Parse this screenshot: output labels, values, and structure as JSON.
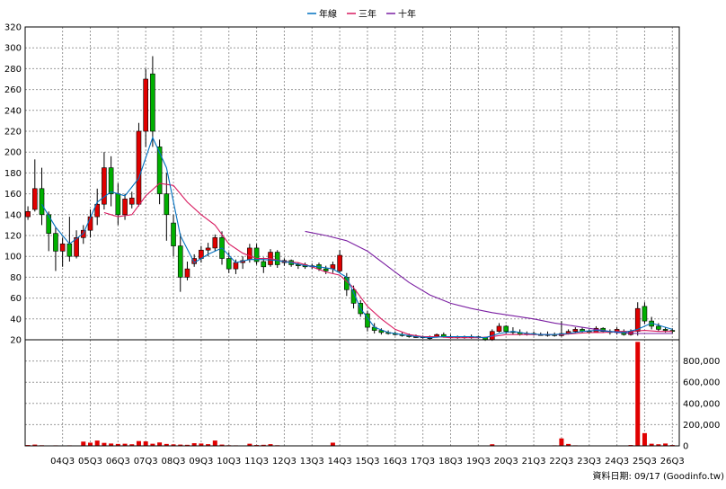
{
  "legend": {
    "items": [
      {
        "label": "年線",
        "color": "#0070c0"
      },
      {
        "label": "三年",
        "color": "#d81b60"
      },
      {
        "label": "十年",
        "color": "#7b1fa2"
      }
    ]
  },
  "footer": "資料日期: 09/17  (Goodinfo.tw)",
  "chart_data": {
    "type": "candlestick",
    "grid": true,
    "x_tick_labels": [
      "04Q3",
      "05Q3",
      "06Q3",
      "07Q3",
      "08Q3",
      "09Q3",
      "10Q3",
      "11Q3",
      "12Q3",
      "13Q3",
      "14Q3",
      "15Q3",
      "16Q3",
      "17Q3",
      "18Q3",
      "19Q3",
      "20Q3",
      "21Q3",
      "22Q3",
      "23Q3",
      "24Q3",
      "25Q3",
      "26Q3"
    ],
    "x_range": [
      2003.15,
      2026.75
    ],
    "price_axis": {
      "ylim": [
        20,
        320
      ],
      "ticks": [
        20,
        40,
        60,
        80,
        100,
        120,
        140,
        160,
        180,
        200,
        220,
        240,
        260,
        280,
        300,
        320
      ]
    },
    "volume_axis": {
      "ylim": [
        0,
        1000000
      ],
      "ticks": [
        0,
        200000,
        400000,
        600000,
        800000
      ],
      "tick_labels": [
        "0",
        "200,000",
        "400,000",
        "600,000",
        "800,000"
      ]
    },
    "colors": {
      "up": "#e00000",
      "down": "#00b000",
      "flat": "#000000",
      "volume": "#e00000"
    },
    "candles": [
      [
        2003.25,
        138,
        148,
        135,
        143
      ],
      [
        2003.5,
        145,
        193,
        143,
        165
      ],
      [
        2003.75,
        165,
        185,
        130,
        140
      ],
      [
        2004.0,
        140,
        143,
        105,
        122
      ],
      [
        2004.25,
        122,
        128,
        86,
        105
      ],
      [
        2004.5,
        105,
        118,
        90,
        112
      ],
      [
        2004.75,
        112,
        138,
        95,
        100
      ],
      [
        2005.0,
        100,
        125,
        98,
        118
      ],
      [
        2005.25,
        118,
        130,
        112,
        125
      ],
      [
        2005.5,
        125,
        145,
        118,
        138
      ],
      [
        2005.75,
        138,
        165,
        130,
        150
      ],
      [
        2006.0,
        150,
        200,
        145,
        185
      ],
      [
        2006.25,
        185,
        196,
        148,
        160
      ],
      [
        2006.5,
        160,
        170,
        130,
        140
      ],
      [
        2006.75,
        140,
        160,
        135,
        155
      ],
      [
        2007.0,
        150,
        162,
        146,
        156
      ],
      [
        2007.25,
        150,
        228,
        148,
        220
      ],
      [
        2007.5,
        220,
        280,
        205,
        270
      ],
      [
        2007.75,
        275,
        292,
        205,
        220
      ],
      [
        2008.0,
        205,
        212,
        150,
        160
      ],
      [
        2008.25,
        160,
        180,
        115,
        140
      ],
      [
        2008.5,
        132,
        140,
        100,
        110
      ],
      [
        2008.75,
        110,
        122,
        66,
        80
      ],
      [
        2009.0,
        80,
        95,
        77,
        88
      ],
      [
        2009.25,
        93,
        102,
        90,
        98
      ],
      [
        2009.5,
        98,
        110,
        94,
        106
      ],
      [
        2009.75,
        106,
        113,
        100,
        108
      ],
      [
        2010.0,
        108,
        121,
        105,
        118
      ],
      [
        2010.25,
        118,
        124,
        92,
        98
      ],
      [
        2010.5,
        98,
        104,
        84,
        88
      ],
      [
        2010.75,
        88,
        97,
        83,
        94
      ],
      [
        2011.0,
        94,
        100,
        88,
        96
      ],
      [
        2011.25,
        97,
        112,
        94,
        108
      ],
      [
        2011.5,
        108,
        112,
        92,
        95
      ],
      [
        2011.75,
        95,
        99,
        84,
        90
      ],
      [
        2012.0,
        92,
        107,
        90,
        104
      ],
      [
        2012.25,
        104,
        106,
        89,
        92
      ],
      [
        2012.5,
        94,
        98,
        91,
        96
      ],
      [
        2012.75,
        96,
        97,
        90,
        92
      ],
      [
        2013.0,
        92,
        94,
        88,
        91
      ],
      [
        2013.25,
        92,
        94,
        88,
        90
      ],
      [
        2013.5,
        90,
        93,
        88,
        91
      ],
      [
        2013.75,
        92,
        94,
        86,
        88
      ],
      [
        2014.0,
        88,
        91,
        83,
        86
      ],
      [
        2014.25,
        88,
        95,
        84,
        92
      ],
      [
        2014.5,
        86,
        106,
        84,
        101
      ],
      [
        2014.75,
        80,
        84,
        62,
        68
      ],
      [
        2015.0,
        68,
        72,
        50,
        55
      ],
      [
        2015.25,
        55,
        58,
        42,
        45
      ],
      [
        2015.5,
        45,
        48,
        28,
        32
      ],
      [
        2015.75,
        32,
        36,
        26,
        29
      ],
      [
        2016.0,
        29,
        31,
        25,
        27
      ],
      [
        2016.25,
        27,
        29,
        25,
        26
      ],
      [
        2016.5,
        26,
        28,
        24,
        25
      ],
      [
        2016.75,
        25,
        27,
        23,
        24
      ],
      [
        2017.0,
        24,
        26,
        22,
        23
      ],
      [
        2017.25,
        23,
        25,
        22,
        23
      ],
      [
        2017.5,
        23,
        24,
        21,
        22
      ],
      [
        2017.75,
        22,
        24,
        20,
        22
      ],
      [
        2018.0,
        23,
        26,
        22,
        25
      ],
      [
        2018.25,
        25,
        27,
        22,
        23
      ],
      [
        2018.5,
        23,
        25,
        21,
        23
      ],
      [
        2018.75,
        23,
        24,
        21,
        22
      ],
      [
        2019.0,
        22,
        24,
        21,
        23
      ],
      [
        2019.25,
        23,
        25,
        21,
        23
      ],
      [
        2019.5,
        23,
        24,
        21,
        22
      ],
      [
        2019.75,
        22,
        23,
        19,
        20
      ],
      [
        2020.0,
        20,
        30,
        19,
        28
      ],
      [
        2020.25,
        28,
        36,
        27,
        33
      ],
      [
        2020.5,
        33,
        34,
        26,
        28
      ],
      [
        2020.75,
        28,
        32,
        25,
        27
      ],
      [
        2021.0,
        27,
        30,
        24,
        25
      ],
      [
        2021.25,
        25,
        28,
        24,
        26
      ],
      [
        2021.5,
        26,
        28,
        24,
        25
      ],
      [
        2021.75,
        25,
        27,
        24,
        25
      ],
      [
        2022.0,
        25,
        28,
        23,
        25
      ],
      [
        2022.25,
        25,
        27,
        23,
        24
      ],
      [
        2022.5,
        24,
        38,
        23,
        26
      ],
      [
        2022.75,
        26,
        30,
        25,
        28
      ],
      [
        2023.0,
        28,
        32,
        26,
        30
      ],
      [
        2023.25,
        30,
        32,
        27,
        28
      ],
      [
        2023.5,
        28,
        30,
        26,
        27
      ],
      [
        2023.75,
        27,
        33,
        27,
        31
      ],
      [
        2024.0,
        31,
        32,
        27,
        28
      ],
      [
        2024.25,
        28,
        30,
        25,
        27
      ],
      [
        2024.5,
        27,
        32,
        25,
        30
      ],
      [
        2024.75,
        28,
        30,
        24,
        25
      ],
      [
        2025.0,
        25,
        30,
        24,
        28
      ],
      [
        2025.25,
        28,
        56,
        24,
        50
      ],
      [
        2025.5,
        52,
        56,
        35,
        38
      ],
      [
        2025.75,
        38,
        42,
        30,
        33
      ],
      [
        2026.0,
        33,
        36,
        28,
        30
      ],
      [
        2026.25,
        30,
        32,
        27,
        29
      ],
      [
        2026.5,
        29,
        31,
        26,
        28
      ]
    ],
    "ma_annual": [
      [
        2003.75,
        150
      ],
      [
        2004.25,
        128
      ],
      [
        2004.75,
        112
      ],
      [
        2005.25,
        122
      ],
      [
        2005.75,
        152
      ],
      [
        2006.25,
        162
      ],
      [
        2006.75,
        158
      ],
      [
        2007.25,
        175
      ],
      [
        2007.75,
        214
      ],
      [
        2008.25,
        185
      ],
      [
        2008.75,
        120
      ],
      [
        2009.25,
        94
      ],
      [
        2009.75,
        102
      ],
      [
        2010.25,
        108
      ],
      [
        2010.75,
        94
      ],
      [
        2011.25,
        97
      ],
      [
        2011.75,
        97
      ],
      [
        2012.25,
        96
      ],
      [
        2012.75,
        94
      ],
      [
        2013.25,
        91
      ],
      [
        2013.75,
        90
      ],
      [
        2014.25,
        88
      ],
      [
        2014.75,
        80
      ],
      [
        2015.25,
        50
      ],
      [
        2015.75,
        32
      ],
      [
        2016.25,
        27
      ],
      [
        2016.75,
        25
      ],
      [
        2017.25,
        23
      ],
      [
        2017.75,
        22
      ],
      [
        2018.25,
        23
      ],
      [
        2018.75,
        23
      ],
      [
        2019.25,
        23
      ],
      [
        2019.75,
        22
      ],
      [
        2020.25,
        26
      ],
      [
        2020.75,
        28
      ],
      [
        2021.25,
        26
      ],
      [
        2021.75,
        25
      ],
      [
        2022.25,
        25
      ],
      [
        2022.75,
        26
      ],
      [
        2023.25,
        28
      ],
      [
        2023.75,
        29
      ],
      [
        2024.25,
        28
      ],
      [
        2024.75,
        27
      ],
      [
        2025.25,
        30
      ],
      [
        2025.75,
        36
      ],
      [
        2026.25,
        32
      ],
      [
        2026.5,
        30
      ]
    ],
    "ma_3yr": [
      [
        2006.0,
        142
      ],
      [
        2006.5,
        138
      ],
      [
        2007.0,
        140
      ],
      [
        2007.5,
        158
      ],
      [
        2008.0,
        170
      ],
      [
        2008.5,
        168
      ],
      [
        2009.0,
        152
      ],
      [
        2009.5,
        140
      ],
      [
        2010.0,
        130
      ],
      [
        2010.5,
        112
      ],
      [
        2011.0,
        103
      ],
      [
        2011.5,
        98
      ],
      [
        2012.0,
        98
      ],
      [
        2012.5,
        95
      ],
      [
        2013.0,
        94
      ],
      [
        2013.5,
        90
      ],
      [
        2014.0,
        85
      ],
      [
        2014.5,
        82
      ],
      [
        2015.0,
        70
      ],
      [
        2015.5,
        52
      ],
      [
        2016.0,
        40
      ],
      [
        2016.5,
        30
      ],
      [
        2017.0,
        25
      ],
      [
        2017.5,
        23
      ],
      [
        2018.0,
        23
      ],
      [
        2018.5,
        22
      ],
      [
        2019.0,
        22
      ],
      [
        2019.5,
        22
      ],
      [
        2020.0,
        23
      ],
      [
        2020.5,
        25
      ],
      [
        2021.0,
        25
      ],
      [
        2021.5,
        25
      ],
      [
        2022.0,
        25
      ],
      [
        2022.5,
        25
      ],
      [
        2023.0,
        26
      ],
      [
        2023.5,
        27
      ],
      [
        2024.0,
        27
      ],
      [
        2024.5,
        28
      ],
      [
        2025.0,
        28
      ],
      [
        2025.5,
        29
      ],
      [
        2026.0,
        28
      ],
      [
        2026.5,
        28
      ]
    ],
    "ma_10yr": [
      [
        2013.25,
        124
      ],
      [
        2014.0,
        120
      ],
      [
        2014.75,
        115
      ],
      [
        2015.5,
        105
      ],
      [
        2016.25,
        90
      ],
      [
        2017.0,
        75
      ],
      [
        2017.75,
        63
      ],
      [
        2018.5,
        55
      ],
      [
        2019.25,
        50
      ],
      [
        2020.0,
        46
      ],
      [
        2020.75,
        43
      ],
      [
        2021.5,
        40
      ],
      [
        2022.25,
        36
      ],
      [
        2023.0,
        33
      ],
      [
        2023.75,
        30
      ],
      [
        2024.5,
        27
      ],
      [
        2025.25,
        26
      ],
      [
        2026.5,
        26
      ]
    ],
    "volume": [
      [
        2003.25,
        8000
      ],
      [
        2003.5,
        12000
      ],
      [
        2003.75,
        6000
      ],
      [
        2004.0,
        4000
      ],
      [
        2004.25,
        5000
      ],
      [
        2004.5,
        4000
      ],
      [
        2004.75,
        5000
      ],
      [
        2005.0,
        4000
      ],
      [
        2005.25,
        40000
      ],
      [
        2005.5,
        30000
      ],
      [
        2005.75,
        50000
      ],
      [
        2006.0,
        28000
      ],
      [
        2006.25,
        22000
      ],
      [
        2006.5,
        18000
      ],
      [
        2006.75,
        20000
      ],
      [
        2007.0,
        15000
      ],
      [
        2007.25,
        45000
      ],
      [
        2007.5,
        42000
      ],
      [
        2007.75,
        20000
      ],
      [
        2008.0,
        32000
      ],
      [
        2008.25,
        18000
      ],
      [
        2008.5,
        14000
      ],
      [
        2008.75,
        12000
      ],
      [
        2009.0,
        10000
      ],
      [
        2009.25,
        25000
      ],
      [
        2009.5,
        22000
      ],
      [
        2009.75,
        16000
      ],
      [
        2010.0,
        50000
      ],
      [
        2010.25,
        12000
      ],
      [
        2010.5,
        6000
      ],
      [
        2010.75,
        5000
      ],
      [
        2011.0,
        4000
      ],
      [
        2011.25,
        20000
      ],
      [
        2011.5,
        8000
      ],
      [
        2011.75,
        10000
      ],
      [
        2012.0,
        16000
      ],
      [
        2012.25,
        6000
      ],
      [
        2012.5,
        3000
      ],
      [
        2012.75,
        3000
      ],
      [
        2013.0,
        2000
      ],
      [
        2013.25,
        2000
      ],
      [
        2013.5,
        2000
      ],
      [
        2013.75,
        2000
      ],
      [
        2014.0,
        2000
      ],
      [
        2014.25,
        30000
      ],
      [
        2014.5,
        4000
      ],
      [
        2014.75,
        3000
      ],
      [
        2015.0,
        3000
      ],
      [
        2015.25,
        2000
      ],
      [
        2015.5,
        2000
      ],
      [
        2015.75,
        2000
      ],
      [
        2016.0,
        2000
      ],
      [
        2016.25,
        2000
      ],
      [
        2016.5,
        2000
      ],
      [
        2016.75,
        2000
      ],
      [
        2017.0,
        2000
      ],
      [
        2017.25,
        2000
      ],
      [
        2017.5,
        2000
      ],
      [
        2017.75,
        2000
      ],
      [
        2018.0,
        2000
      ],
      [
        2018.25,
        2000
      ],
      [
        2018.5,
        2000
      ],
      [
        2018.75,
        2000
      ],
      [
        2019.0,
        2000
      ],
      [
        2019.25,
        2000
      ],
      [
        2019.5,
        2000
      ],
      [
        2019.75,
        2000
      ],
      [
        2020.0,
        15000
      ],
      [
        2020.25,
        4000
      ],
      [
        2020.5,
        2000
      ],
      [
        2020.75,
        2000
      ],
      [
        2021.0,
        2000
      ],
      [
        2021.25,
        2000
      ],
      [
        2021.5,
        2000
      ],
      [
        2021.75,
        2000
      ],
      [
        2022.0,
        4000
      ],
      [
        2022.25,
        5000
      ],
      [
        2022.5,
        70000
      ],
      [
        2022.75,
        18000
      ],
      [
        2023.0,
        5000
      ],
      [
        2023.25,
        3000
      ],
      [
        2023.5,
        2000
      ],
      [
        2023.75,
        3000
      ],
      [
        2024.0,
        2000
      ],
      [
        2024.25,
        2000
      ],
      [
        2024.5,
        4000
      ],
      [
        2024.75,
        3000
      ],
      [
        2025.0,
        8000
      ],
      [
        2025.25,
        980000
      ],
      [
        2025.5,
        120000
      ],
      [
        2025.75,
        20000
      ],
      [
        2026.0,
        15000
      ],
      [
        2026.25,
        22000
      ],
      [
        2026.5,
        8000
      ]
    ]
  }
}
